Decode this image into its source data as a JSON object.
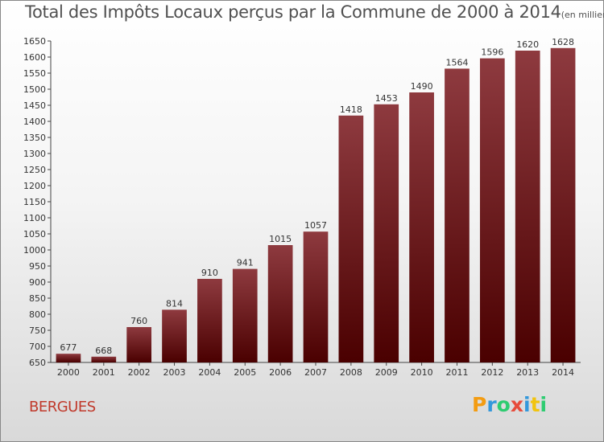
{
  "chart_data": {
    "type": "bar",
    "title": "Total des Impôts Locaux perçus par la Commune de 2000 à 2014",
    "title_unit": "(en milliers d'€)",
    "categories": [
      "2000",
      "2001",
      "2002",
      "2003",
      "2004",
      "2005",
      "2006",
      "2007",
      "2008",
      "2009",
      "2010",
      "2011",
      "2012",
      "2013",
      "2014"
    ],
    "values": [
      677,
      668,
      760,
      814,
      910,
      941,
      1015,
      1057,
      1418,
      1453,
      1490,
      1564,
      1596,
      1620,
      1628
    ],
    "ylim": [
      650,
      1650
    ],
    "ytick_step": 50,
    "xlabel": "",
    "ylabel": "",
    "grid": false
  },
  "commune_name": "BERGUES",
  "logo": {
    "letters": [
      "P",
      "r",
      "o",
      "x",
      "i",
      "t",
      "i"
    ],
    "colors": [
      "#f39c12",
      "#3498db",
      "#2ecc71",
      "#e74c3c",
      "#3498db",
      "#f1c40f",
      "#2ecc71"
    ]
  },
  "colors": {
    "bar_top": "#8e3a3f",
    "bar_bottom": "#4a0000",
    "commune": "#c0392b",
    "title": "#505050"
  }
}
